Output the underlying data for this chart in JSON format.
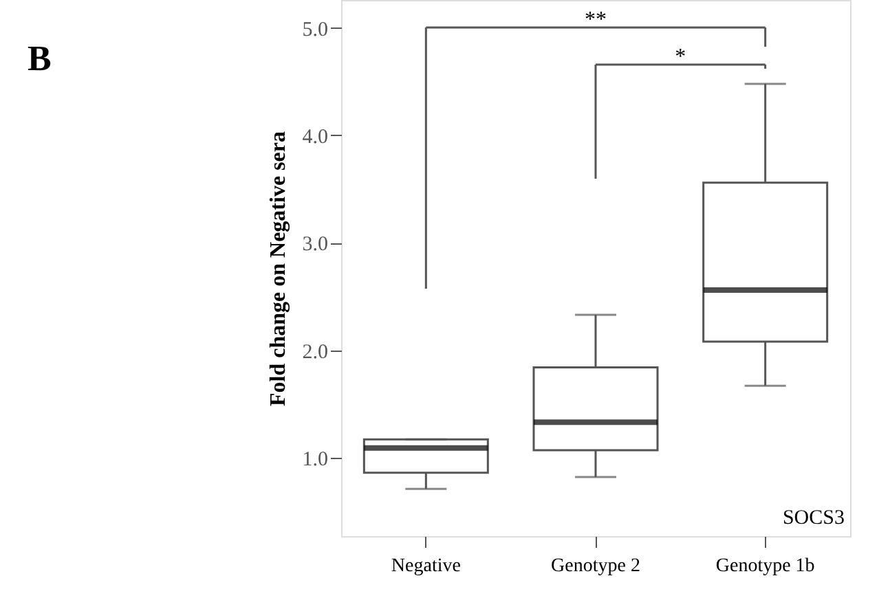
{
  "chart_data": {
    "type": "box",
    "title": "B",
    "ylabel": "Fold change on Negative sera",
    "categories": [
      "Negative",
      "Genotype 2",
      "Genotype 1b"
    ],
    "boxes": [
      {
        "low": 0.71,
        "q1": 0.86,
        "median": 1.09,
        "q3": 1.17,
        "high": 1.17
      },
      {
        "low": 0.82,
        "q1": 1.07,
        "median": 1.33,
        "q3": 1.84,
        "high": 2.33
      },
      {
        "low": 1.67,
        "q1": 2.08,
        "median": 2.56,
        "q3": 3.56,
        "high": 4.48
      }
    ],
    "color": "#ffffff",
    "ylim": [
      0.27,
      5.26
    ],
    "yticks": [
      {
        "value": 1,
        "label": "1.0"
      },
      {
        "value": 2,
        "label": "2.0"
      },
      {
        "value": 3,
        "label": "3.0"
      },
      {
        "value": 4,
        "label": "4.0"
      },
      {
        "value": 5,
        "label": "5.0"
      }
    ],
    "grid": false,
    "annotations": [
      "**",
      "*",
      "SOCS3"
    ]
  }
}
